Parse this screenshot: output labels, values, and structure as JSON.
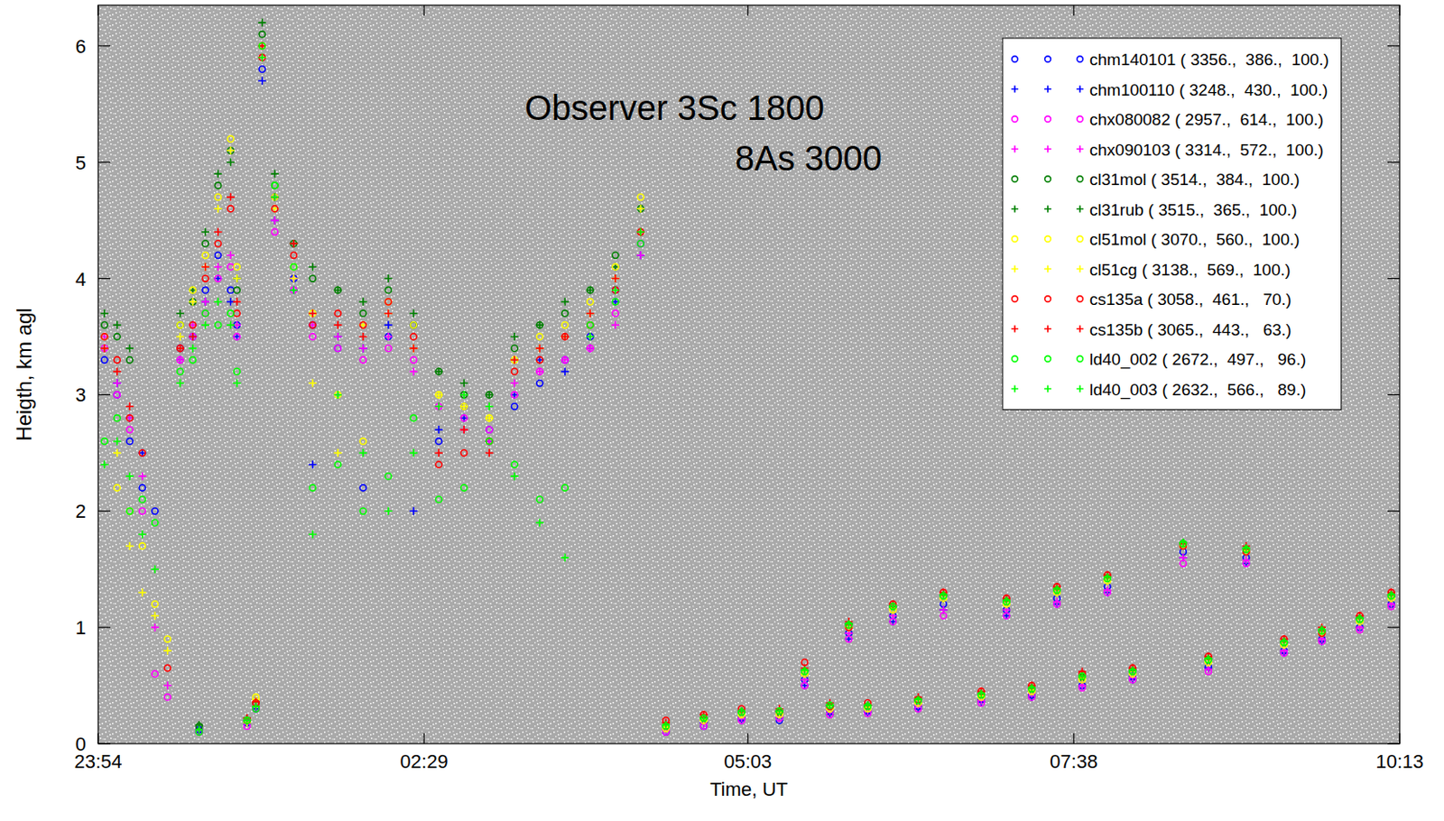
{
  "chart_data": {
    "type": "scatter",
    "xlabel": "Time, UT",
    "ylabel": "Heigth, km agl",
    "annotations": [
      "Observer 3Sc 1800",
      "8As 3000"
    ],
    "legend": "top-right",
    "xlim": [
      23.9,
      34.2167
    ],
    "xticks": [
      {
        "value": 23.9,
        "label": "23:54"
      },
      {
        "value": 26.4833,
        "label": "02:29"
      },
      {
        "value": 29.05,
        "label": "05:03"
      },
      {
        "value": 31.6333,
        "label": "07:38"
      },
      {
        "value": 34.2167,
        "label": "10:13"
      }
    ],
    "ylim": [
      0,
      6.35
    ],
    "yticks": [
      0,
      1,
      2,
      3,
      4,
      5,
      6
    ],
    "x": [
      23.95,
      24.05,
      24.15,
      24.25,
      24.35,
      24.45,
      24.55,
      24.65,
      24.75,
      24.85,
      24.95,
      25.0,
      24.7,
      25.08,
      25.15,
      25.2,
      25.3,
      25.45,
      25.6,
      25.8,
      26.0,
      26.2,
      26.4,
      26.6,
      26.8,
      27.0,
      27.2,
      27.4,
      27.6,
      27.8,
      28.0,
      28.2,
      28.4,
      28.7,
      29.0,
      29.3,
      29.5,
      29.7,
      29.85,
      30.0,
      30.2,
      30.4,
      30.6,
      30.9,
      31.1,
      31.3,
      31.5,
      31.7,
      31.9,
      32.1,
      32.5,
      32.7,
      33.0,
      33.3,
      33.6,
      33.9,
      34.15
    ],
    "series": [
      {
        "name": "chm140101 ( 3356.,  386.,  100.)",
        "color": "#0000ff",
        "marker": "circle",
        "values": [
          3.3,
          3.0,
          2.6,
          2.2,
          2.0,
          null,
          3.4,
          3.5,
          3.9,
          4.2,
          3.9,
          3.6,
          0.12,
          0.18,
          0.3,
          5.8,
          4.7,
          4.0,
          3.6,
          3.4,
          2.2,
          3.5,
          3.6,
          2.6,
          2.9,
          2.7,
          2.9,
          3.1,
          3.3,
          3.5,
          3.9,
          4.3,
          0.1,
          0.15,
          0.22,
          0.2,
          0.55,
          0.28,
          0.95,
          0.28,
          1.1,
          0.32,
          1.2,
          0.38,
          1.15,
          0.42,
          1.25,
          0.5,
          1.35,
          0.58,
          1.65,
          0.66,
          1.6,
          0.8,
          0.9,
          1.0,
          1.2
        ]
      },
      {
        "name": "chm100110 ( 3248.,  430.,  100.)",
        "color": "#0000ff",
        "marker": "plus",
        "values": [
          3.4,
          3.1,
          2.8,
          2.5,
          null,
          null,
          3.3,
          3.5,
          3.8,
          4.0,
          3.8,
          3.5,
          0.1,
          0.2,
          0.3,
          5.7,
          4.5,
          3.9,
          2.4,
          3.5,
          3.4,
          3.6,
          2.0,
          2.7,
          2.8,
          2.6,
          3.0,
          3.3,
          3.2,
          3.4,
          3.8,
          4.2,
          0.12,
          0.18,
          0.2,
          0.22,
          0.5,
          0.25,
          0.9,
          0.27,
          1.05,
          0.3,
          1.15,
          0.36,
          1.1,
          0.4,
          1.2,
          0.5,
          1.3,
          0.55,
          1.6,
          0.65,
          1.55,
          0.78,
          0.88,
          1.0,
          1.2
        ]
      },
      {
        "name": "chx080082 ( 2957.,  614.,  100.)",
        "color": "#ff00ff",
        "marker": "circle",
        "values": [
          3.4,
          3.0,
          2.7,
          2.0,
          0.6,
          0.4,
          3.3,
          3.5,
          3.7,
          4.0,
          4.1,
          3.5,
          0.1,
          0.15,
          0.3,
          6.0,
          4.4,
          3.9,
          3.5,
          3.4,
          3.3,
          3.4,
          3.3,
          2.9,
          2.8,
          2.7,
          3.0,
          3.2,
          3.3,
          3.4,
          3.7,
          4.3,
          0.1,
          0.15,
          0.2,
          0.22,
          0.5,
          0.25,
          0.9,
          0.26,
          1.05,
          0.3,
          1.1,
          0.35,
          1.1,
          0.4,
          1.2,
          0.48,
          1.3,
          0.55,
          1.55,
          0.62,
          1.55,
          0.78,
          0.88,
          0.98,
          1.18
        ]
      },
      {
        "name": "chx090103 ( 3314.,  572.,  100.)",
        "color": "#ff00ff",
        "marker": "plus",
        "values": [
          3.5,
          3.1,
          2.8,
          2.3,
          1.0,
          0.5,
          3.3,
          3.6,
          3.8,
          4.1,
          4.2,
          3.6,
          0.12,
          0.2,
          0.32,
          5.9,
          4.5,
          4.0,
          3.6,
          3.5,
          3.4,
          3.5,
          3.2,
          2.9,
          2.7,
          2.6,
          3.1,
          3.2,
          3.3,
          3.4,
          3.6,
          4.2,
          0.12,
          0.17,
          0.22,
          0.23,
          0.55,
          0.28,
          0.95,
          0.28,
          1.1,
          0.33,
          1.15,
          0.37,
          1.15,
          0.43,
          1.22,
          0.5,
          1.32,
          0.57,
          1.6,
          0.64,
          1.58,
          0.8,
          0.9,
          1.0,
          1.2
        ]
      },
      {
        "name": "cl31mol ( 3514.,  384.,  100.)",
        "color": "#008000",
        "marker": "circle",
        "values": [
          3.6,
          3.5,
          3.3,
          null,
          null,
          null,
          3.6,
          3.8,
          4.3,
          4.8,
          5.1,
          3.9,
          0.15,
          0.2,
          0.35,
          6.1,
          4.8,
          4.3,
          4.0,
          3.9,
          3.7,
          3.9,
          3.6,
          3.2,
          3.0,
          3.0,
          3.4,
          3.6,
          3.7,
          3.9,
          4.2,
          4.6,
          0.15,
          0.22,
          0.27,
          0.27,
          0.62,
          0.32,
          1.02,
          0.32,
          1.18,
          0.37,
          1.27,
          0.42,
          1.22,
          0.47,
          1.32,
          0.57,
          1.42,
          0.62,
          1.72,
          0.72,
          1.67,
          0.87,
          0.97,
          1.07,
          1.27
        ]
      },
      {
        "name": "cl31rub ( 3515.,  365.,  100.)",
        "color": "#008000",
        "marker": "plus",
        "values": [
          3.7,
          3.6,
          3.4,
          null,
          null,
          null,
          3.7,
          3.9,
          4.4,
          4.9,
          5.0,
          4.0,
          0.16,
          0.22,
          0.36,
          6.2,
          4.9,
          4.3,
          4.1,
          3.9,
          3.8,
          4.0,
          3.7,
          3.2,
          3.1,
          3.0,
          3.5,
          3.6,
          3.8,
          3.9,
          4.1,
          4.6,
          0.16,
          0.22,
          0.28,
          0.28,
          0.63,
          0.33,
          1.03,
          0.33,
          1.18,
          0.38,
          1.28,
          0.43,
          1.23,
          0.48,
          1.33,
          0.58,
          1.43,
          0.63,
          1.73,
          0.73,
          1.68,
          0.88,
          0.98,
          1.08,
          1.28
        ]
      },
      {
        "name": "cl51mol ( 3070.,  560.,  100.)",
        "color": "#ffff00",
        "marker": "circle",
        "values": [
          3.5,
          2.2,
          2.0,
          1.7,
          1.2,
          0.9,
          3.6,
          3.9,
          4.2,
          4.7,
          5.2,
          4.1,
          null,
          0.2,
          0.4,
          6.0,
          4.7,
          4.1,
          3.7,
          3.0,
          2.6,
          3.8,
          3.6,
          3.0,
          2.9,
          2.8,
          3.3,
          3.5,
          3.6,
          3.8,
          4.1,
          4.7,
          0.13,
          0.2,
          0.25,
          0.25,
          0.6,
          0.3,
          1.0,
          0.3,
          1.15,
          0.35,
          1.25,
          0.4,
          1.2,
          0.45,
          1.3,
          0.55,
          1.4,
          0.6,
          1.7,
          0.7,
          1.65,
          0.85,
          0.95,
          1.05,
          1.25
        ]
      },
      {
        "name": "cl51cg ( 3138.,  569.,  100.)",
        "color": "#ffff00",
        "marker": "plus",
        "values": [
          3.4,
          2.5,
          1.7,
          1.3,
          1.1,
          0.8,
          3.5,
          3.8,
          4.1,
          4.6,
          5.1,
          4.0,
          null,
          0.18,
          0.38,
          5.9,
          4.6,
          4.0,
          3.1,
          2.5,
          3.6,
          3.7,
          3.4,
          3.0,
          2.9,
          2.8,
          3.3,
          3.4,
          3.5,
          3.7,
          4.0,
          4.6,
          0.14,
          0.2,
          0.25,
          0.26,
          0.6,
          0.3,
          1.0,
          0.31,
          1.16,
          0.35,
          1.25,
          0.41,
          1.2,
          0.46,
          1.3,
          0.56,
          1.4,
          0.6,
          1.7,
          0.7,
          1.66,
          0.85,
          0.95,
          1.05,
          1.25
        ]
      },
      {
        "name": "cs135a ( 3058.,  461.,   70.)",
        "color": "#ff0000",
        "marker": "circle",
        "values": [
          3.5,
          3.3,
          2.8,
          2.5,
          null,
          0.65,
          3.4,
          3.6,
          4.0,
          4.3,
          4.6,
          3.7,
          null,
          0.2,
          0.35,
          5.9,
          4.6,
          4.2,
          3.6,
          3.7,
          3.6,
          3.8,
          3.5,
          2.4,
          2.5,
          2.6,
          3.2,
          3.3,
          3.5,
          3.6,
          3.9,
          4.4,
          0.2,
          0.25,
          0.3,
          0.28,
          0.7,
          0.32,
          1.0,
          0.35,
          1.2,
          0.38,
          1.3,
          0.45,
          1.25,
          0.5,
          1.35,
          0.6,
          1.45,
          0.65,
          1.7,
          0.75,
          1.65,
          0.9,
          0.95,
          1.1,
          1.3
        ]
      },
      {
        "name": "cs135b ( 3065.,  443.,   63.)",
        "color": "#ff0000",
        "marker": "plus",
        "values": [
          3.4,
          3.2,
          2.9,
          null,
          null,
          null,
          3.4,
          3.5,
          4.1,
          4.4,
          4.7,
          3.8,
          null,
          0.22,
          0.36,
          6.0,
          4.7,
          4.3,
          3.7,
          3.6,
          3.5,
          3.7,
          3.4,
          2.5,
          2.7,
          2.5,
          3.3,
          3.4,
          3.5,
          3.7,
          4.0,
          4.4,
          0.18,
          0.25,
          0.28,
          0.3,
          0.65,
          0.35,
          1.05,
          0.33,
          1.2,
          0.4,
          1.3,
          0.45,
          1.25,
          0.5,
          1.35,
          0.62,
          1.45,
          0.65,
          1.72,
          0.75,
          1.7,
          0.9,
          1.0,
          1.1,
          1.3
        ]
      },
      {
        "name": "ld40_002 ( 2672.,  497.,   96.)",
        "color": "#00ff00",
        "marker": "circle",
        "values": [
          2.6,
          2.8,
          2.0,
          2.1,
          1.9,
          null,
          3.2,
          3.3,
          3.7,
          3.6,
          3.7,
          3.2,
          0.1,
          0.2,
          0.3,
          6.0,
          4.8,
          4.1,
          2.2,
          2.4,
          2.0,
          2.3,
          2.8,
          2.1,
          2.2,
          2.6,
          2.4,
          2.1,
          2.2,
          3.6,
          3.8,
          4.3,
          0.15,
          0.22,
          0.27,
          0.28,
          0.62,
          0.33,
          1.02,
          0.32,
          1.18,
          0.37,
          1.27,
          0.42,
          1.22,
          0.47,
          1.32,
          0.58,
          1.42,
          0.62,
          1.72,
          0.72,
          1.67,
          0.87,
          0.97,
          1.07,
          1.27
        ]
      },
      {
        "name": "ld40_003 ( 2632.,  566.,   89.)",
        "color": "#00ff00",
        "marker": "plus",
        "values": [
          2.4,
          2.6,
          2.3,
          1.8,
          1.5,
          null,
          3.1,
          3.4,
          3.6,
          3.8,
          3.6,
          3.1,
          0.12,
          0.2,
          0.32,
          5.9,
          4.7,
          3.9,
          1.8,
          3.0,
          2.5,
          2.0,
          2.5,
          2.9,
          3.0,
          2.9,
          2.3,
          1.9,
          1.6,
          3.5,
          3.9,
          4.4,
          0.16,
          0.22,
          0.28,
          0.28,
          0.63,
          0.33,
          1.03,
          0.33,
          1.18,
          0.38,
          1.28,
          0.43,
          1.23,
          0.48,
          1.33,
          0.58,
          1.43,
          0.63,
          1.73,
          0.73,
          1.68,
          0.88,
          0.98,
          1.08,
          1.28
        ]
      }
    ]
  }
}
